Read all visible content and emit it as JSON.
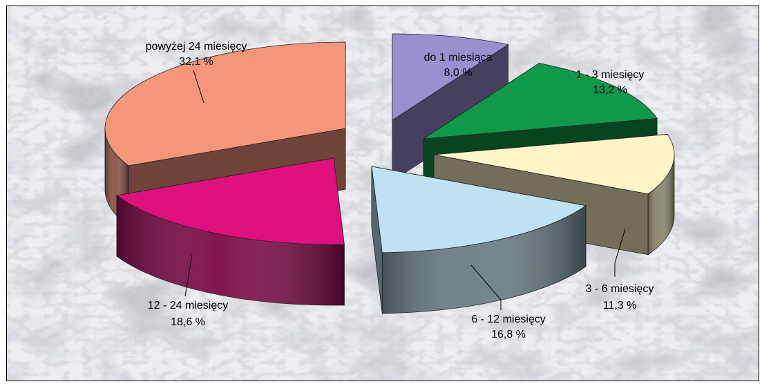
{
  "chart_data": {
    "type": "pie",
    "title": "",
    "style": "3d-exploded",
    "slices": [
      {
        "label": "do 1 miesiąca",
        "value_text": "8,0 %",
        "value": 8.0,
        "color": "#9b8fd0"
      },
      {
        "label": "1 - 3 miesięcy",
        "value_text": "13,2 %",
        "value": 13.2,
        "color": "#0f9a4a"
      },
      {
        "label": "3 - 6 miesięcy",
        "value_text": "11,3 %",
        "value": 11.3,
        "color": "#fdf5c8"
      },
      {
        "label": "6 - 12 miesięcy",
        "value_text": "16,8 %",
        "value": 16.8,
        "color": "#bfe2f2"
      },
      {
        "label": "12 - 24 miesięcy",
        "value_text": "18,6 %",
        "value": 18.6,
        "color": "#e0107e"
      },
      {
        "label": "powyżej 24 miesięcy",
        "value_text": "32,1 %",
        "value": 32.1,
        "color": "#f3967a"
      }
    ]
  }
}
